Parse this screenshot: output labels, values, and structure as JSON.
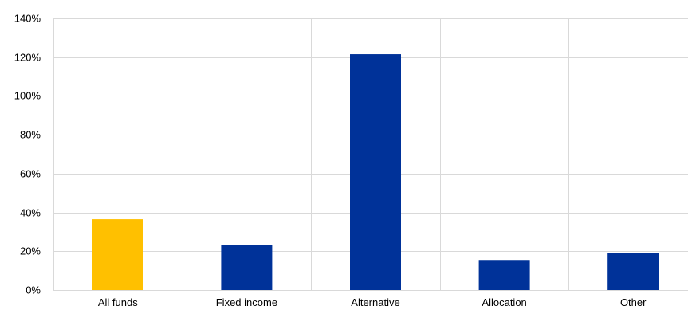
{
  "chart_data": {
    "type": "bar",
    "title": "",
    "xlabel": "",
    "ylabel": "",
    "categories": [
      "All funds",
      "Fixed income",
      "Alternative",
      "Allocation",
      "Other"
    ],
    "values": [
      36.5,
      23,
      121.5,
      15.5,
      19
    ],
    "ylim": [
      0,
      140
    ],
    "yticks": [
      0,
      20,
      40,
      60,
      80,
      100,
      120,
      140
    ],
    "tick_format": "percent",
    "grid": true,
    "highlight_color": "#ffc000",
    "bar_color": "#003299",
    "highlight_index": 0
  }
}
